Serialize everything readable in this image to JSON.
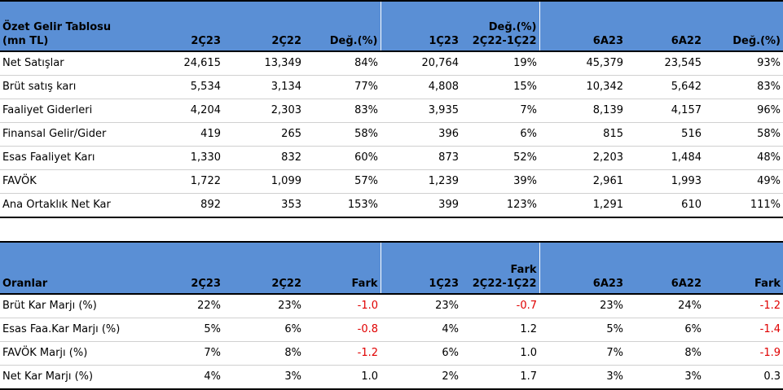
{
  "income": {
    "title_line1": "Özet Gelir Tablosu",
    "title_line2": "(mn TL)",
    "headers": [
      "2Ç23",
      "2Ç22",
      "Değ.(%)",
      "1Ç23",
      "2Ç22-1Ç22",
      "6A23",
      "6A22",
      "Değ.(%)"
    ],
    "header_over_col5": "Değ.(%)",
    "rows": [
      {
        "label": "Net Satışlar",
        "values": [
          "24,615",
          "13,349",
          "84%",
          "20,764",
          "19%",
          "45,379",
          "23,545",
          "93%"
        ]
      },
      {
        "label": "Brüt satış karı",
        "values": [
          "5,534",
          "3,134",
          "77%",
          "4,808",
          "15%",
          "10,342",
          "5,642",
          "83%"
        ]
      },
      {
        "label": "Faaliyet Giderleri",
        "values": [
          "4,204",
          "2,303",
          "83%",
          "3,935",
          "7%",
          "8,139",
          "4,157",
          "96%"
        ]
      },
      {
        "label": "Finansal Gelir/Gider",
        "values": [
          "419",
          "265",
          "58%",
          "396",
          "6%",
          "815",
          "516",
          "58%"
        ]
      },
      {
        "label": "Esas Faaliyet Karı",
        "values": [
          "1,330",
          "832",
          "60%",
          "873",
          "52%",
          "2,203",
          "1,484",
          "48%"
        ]
      },
      {
        "label": "FAVÖK",
        "values": [
          "1,722",
          "1,099",
          "57%",
          "1,239",
          "39%",
          "2,961",
          "1,993",
          "49%"
        ]
      },
      {
        "label": "Ana Ortaklık Net Kar",
        "values": [
          "892",
          "353",
          "153%",
          "399",
          "123%",
          "1,291",
          "610",
          "111%"
        ]
      }
    ]
  },
  "ratios": {
    "title": "Oranlar",
    "headers": [
      "2Ç23",
      "2Ç22",
      "Fark",
      "1Ç23",
      "2Ç22-1Ç22",
      "6A23",
      "6A22",
      "Fark"
    ],
    "header_over_col5": "Fark",
    "rows": [
      {
        "label": "Brüt Kar Marjı (%)",
        "values": [
          "22%",
          "23%",
          "-1.0",
          "23%",
          "-0.7",
          "23%",
          "24%",
          "-1.2"
        ]
      },
      {
        "label": "Esas Faa.Kar Marjı (%)",
        "values": [
          "5%",
          "6%",
          "-0.8",
          "4%",
          "1.2",
          "5%",
          "6%",
          "-1.4"
        ]
      },
      {
        "label": "FAVÖK Marjı (%)",
        "values": [
          "7%",
          "8%",
          "-1.2",
          "6%",
          "1.0",
          "7%",
          "8%",
          "-1.9"
        ]
      },
      {
        "label": "Net Kar Marjı (%)",
        "values": [
          "4%",
          "3%",
          "1.0",
          "2%",
          "1.7",
          "3%",
          "3%",
          "0.3"
        ]
      }
    ]
  },
  "colors": {
    "header_bg": "#5a8fd5",
    "negative": "#e00000"
  }
}
